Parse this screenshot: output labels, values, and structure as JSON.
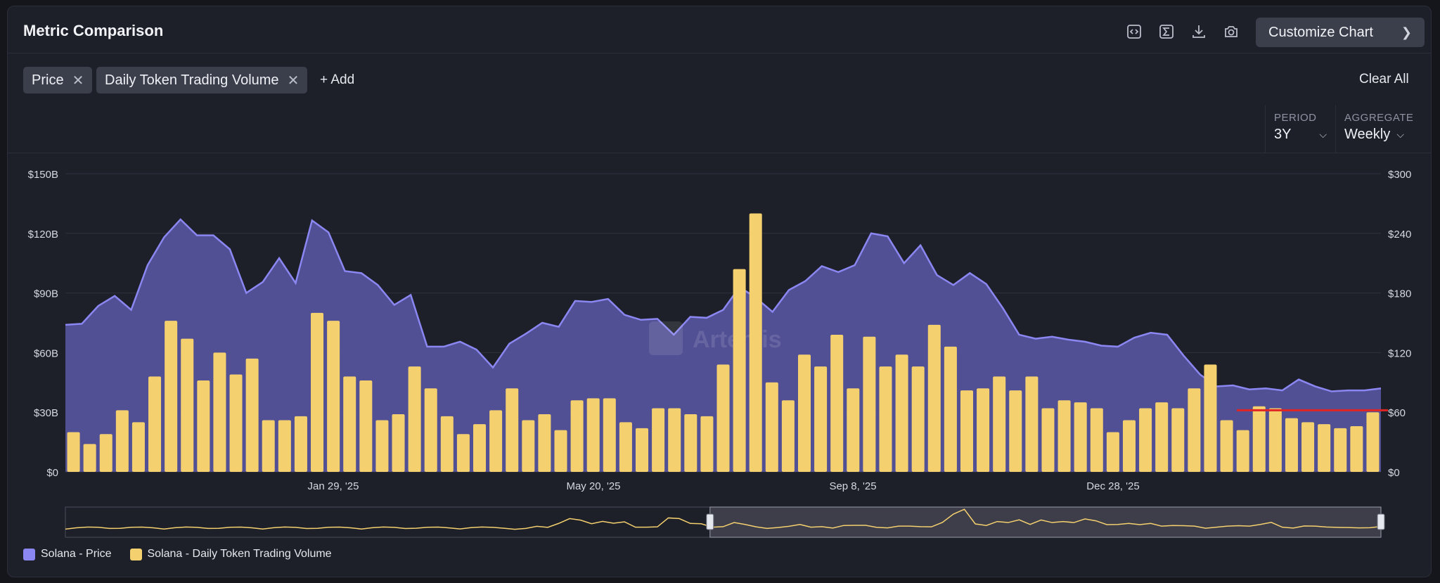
{
  "header": {
    "title": "Metric Comparison",
    "customize_label": "Customize Chart",
    "icons": [
      "code-icon",
      "sigma-icon",
      "download-icon",
      "camera-icon"
    ]
  },
  "metrics": {
    "chips": [
      {
        "label": "Price"
      },
      {
        "label": "Daily Token Trading Volume"
      }
    ],
    "add_label": "+ Add",
    "clear_label": "Clear All"
  },
  "controls": {
    "period_label": "PERIOD",
    "period_value": "3Y",
    "aggregate_label": "AGGREGATE",
    "aggregate_value": "Weekly"
  },
  "colors": {
    "price": "#8b87f2",
    "price_fill": "#55539a",
    "volume": "#f5d06f",
    "accent_line": "#e02424"
  },
  "chart_data": {
    "type": "bar",
    "watermark": "Artemis",
    "x_tick_labels": [
      "Jan 29, '25",
      "May 20, '25",
      "Sep 8, '25",
      "Dec 28, '25"
    ],
    "y_left": {
      "ticks": [
        "$0",
        "$30B",
        "$60B",
        "$90B",
        "$120B",
        "$150B"
      ],
      "ylim": [
        0,
        150
      ]
    },
    "y_right": {
      "ticks": [
        "$0",
        "$60",
        "$120",
        "$180",
        "$240",
        "$300"
      ],
      "ylim": [
        0,
        300
      ]
    },
    "grid": true,
    "legend_placement": "bottom-left",
    "series": [
      {
        "name": "Solana - Price",
        "type": "area",
        "axis": "right",
        "values": [
          148,
          149,
          167,
          177,
          163,
          208,
          236,
          254,
          238,
          238,
          224,
          180,
          191,
          215,
          190,
          253,
          241,
          202,
          200,
          188,
          168,
          178,
          126,
          126,
          131,
          123,
          105,
          129,
          139,
          150,
          146,
          172,
          171,
          174,
          158,
          153,
          154,
          138,
          156,
          155,
          163,
          186,
          175,
          161,
          183,
          192,
          207,
          201,
          208,
          240,
          237,
          210,
          228,
          198,
          188,
          200,
          189,
          165,
          138,
          134,
          136,
          133,
          131,
          127,
          126,
          135,
          140,
          138,
          117,
          98,
          86,
          87,
          83,
          84,
          82,
          93,
          86,
          81,
          82,
          82,
          84
        ]
      },
      {
        "name": "Solana - Daily Token Trading Volume",
        "type": "bar",
        "axis": "left",
        "values": [
          20,
          14,
          19,
          31,
          25,
          48,
          76,
          67,
          46,
          60,
          49,
          57,
          26,
          26,
          28,
          80,
          76,
          48,
          46,
          26,
          29,
          53,
          42,
          28,
          19,
          24,
          31,
          42,
          26,
          29,
          21,
          36,
          37,
          37,
          25,
          22,
          32,
          32,
          29,
          28,
          54,
          102,
          130,
          45,
          36,
          59,
          53,
          69,
          42,
          68,
          53,
          59,
          53,
          74,
          63,
          41,
          42,
          48,
          41,
          48,
          32,
          36,
          35,
          32,
          20,
          26,
          32,
          35,
          32,
          42,
          54,
          26,
          21,
          33,
          32,
          27,
          25,
          24,
          22,
          23,
          30
        ]
      }
    ],
    "navigator": {
      "selection_start": 0.49,
      "selection_end": 1.0
    },
    "reference_line": {
      "axis": "left",
      "value": 31
    }
  }
}
